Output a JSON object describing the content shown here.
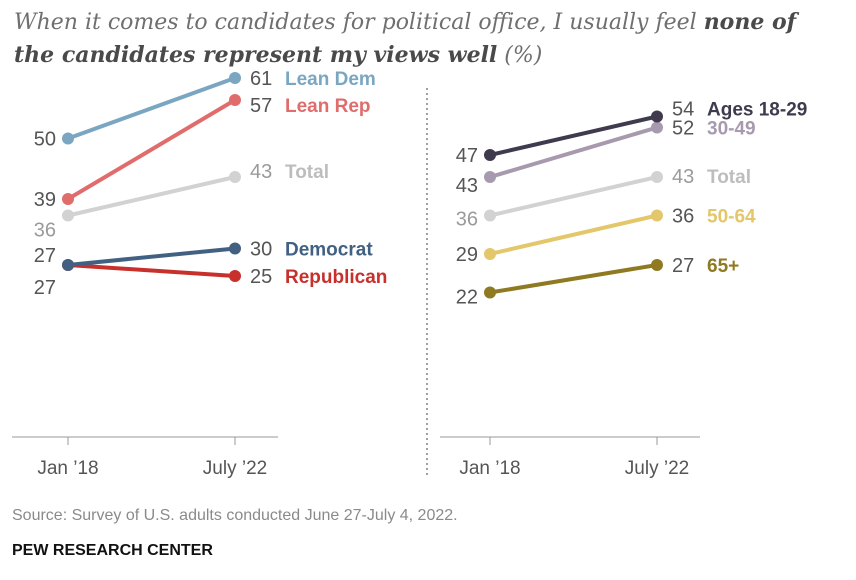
{
  "title": {
    "part1": "When it comes to candidates for political office, I usually feel ",
    "bold": "none of the candidates represent my views well",
    "part2": " (%)"
  },
  "source": "Source: Survey of U.S. adults conducted June 27-July 4, 2022.",
  "organization": "PEW RESEARCH CENTER",
  "chart_data": [
    {
      "type": "line",
      "categories": [
        "Jan ’18",
        "July ’22"
      ],
      "ylim": [
        0,
        70
      ],
      "grid": false,
      "series": [
        {
          "name": "Lean Dem",
          "values": [
            50,
            61
          ],
          "color": "#7aa6c2"
        },
        {
          "name": "Lean Rep",
          "values": [
            39,
            57
          ],
          "color": "#e06c6c"
        },
        {
          "name": "Total",
          "values": [
            36,
            43
          ],
          "color": "#d2d2d2"
        },
        {
          "name": "Democrat",
          "values": [
            27,
            30
          ],
          "color": "#426182"
        },
        {
          "name": "Republican",
          "values": [
            27,
            25
          ],
          "color": "#c8302c"
        }
      ]
    },
    {
      "type": "line",
      "categories": [
        "Jan ’18",
        "July ’22"
      ],
      "ylim": [
        0,
        70
      ],
      "grid": false,
      "series": [
        {
          "name": "Ages 18-29",
          "values": [
            47,
            54
          ],
          "color": "#3f3a4d"
        },
        {
          "name": "30-49",
          "values": [
            43,
            52
          ],
          "color": "#a89aae"
        },
        {
          "name": "Total",
          "values": [
            36,
            43
          ],
          "color": "#d2d2d2"
        },
        {
          "name": "50-64",
          "values": [
            29,
            36
          ],
          "color": "#e3c76a"
        },
        {
          "name": "65+",
          "values": [
            22,
            27
          ],
          "color": "#8f7a22"
        }
      ]
    }
  ]
}
